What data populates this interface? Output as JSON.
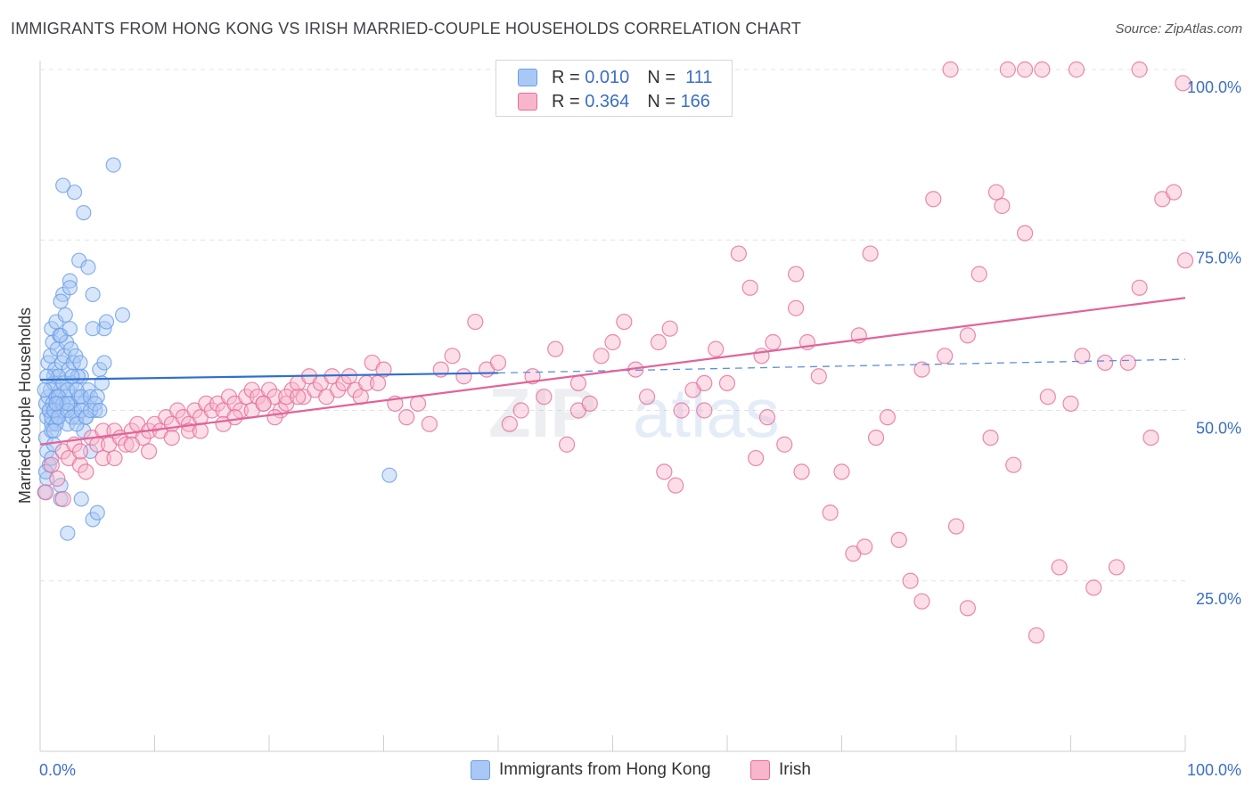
{
  "title": "IMMIGRANTS FROM HONG KONG VS IRISH MARRIED-COUPLE HOUSEHOLDS CORRELATION CHART",
  "source": "Source: ZipAtlas.com",
  "watermark": {
    "zip": "ZIP",
    "atlas": "atlas"
  },
  "legend_top": [
    {
      "r_label": "R = ",
      "r_value": "0.010",
      "n_label": "N = ",
      "n_value": "111",
      "color": "#a9c8f5"
    },
    {
      "r_label": "R = ",
      "r_value": "0.364",
      "n_label": "N = ",
      "n_value": "166",
      "color": "#f7b6cb"
    }
  ],
  "legend_bottom": [
    {
      "label": "Immigrants from Hong Kong",
      "color": "#a9c8f5"
    },
    {
      "label": "Irish",
      "color": "#f7b6cb"
    }
  ],
  "chart_data": {
    "type": "scatter",
    "title": "IMMIGRANTS FROM HONG KONG VS IRISH MARRIED-COUPLE HOUSEHOLDS CORRELATION CHART",
    "xlabel": "",
    "ylabel": "Married-couple Households",
    "xlim": [
      0,
      100
    ],
    "ylim": [
      0,
      100
    ],
    "x_tick_labels": [
      "0.0%",
      "100.0%"
    ],
    "y_tick_labels": [
      "25.0%",
      "50.0%",
      "75.0%",
      "100.0%"
    ],
    "y_ticks": [
      25,
      50,
      75,
      100
    ],
    "grid": true,
    "series": [
      {
        "name": "Immigrants from Hong Kong",
        "color": "#6a9fe6",
        "fill": "#a9c8f5",
        "r": 0.01,
        "n": 111,
        "trend": {
          "x0": 0,
          "y0": 54.5,
          "x1": 40,
          "y1": 55.5,
          "dash_x1": 100,
          "dash_y1": 57.5
        },
        "points": [
          [
            0.5,
            51
          ],
          [
            0.6,
            49
          ],
          [
            0.7,
            52
          ],
          [
            0.8,
            50
          ],
          [
            0.9,
            53
          ],
          [
            1.0,
            48
          ],
          [
            1.1,
            51
          ],
          [
            1.2,
            55
          ],
          [
            1.3,
            50
          ],
          [
            1.4,
            52
          ],
          [
            0.5,
            46
          ],
          [
            0.6,
            44
          ],
          [
            0.8,
            42
          ],
          [
            1.0,
            47
          ],
          [
            1.2,
            45
          ],
          [
            1.5,
            49
          ],
          [
            1.6,
            51
          ],
          [
            1.8,
            53
          ],
          [
            2.0,
            50
          ],
          [
            2.2,
            52
          ],
          [
            2.4,
            48
          ],
          [
            2.6,
            51
          ],
          [
            2.8,
            54
          ],
          [
            3.0,
            50
          ],
          [
            3.2,
            49
          ],
          [
            3.4,
            52
          ],
          [
            3.6,
            55
          ],
          [
            3.8,
            51
          ],
          [
            4.0,
            49
          ],
          [
            4.2,
            53
          ],
          [
            0.7,
            57
          ],
          [
            0.9,
            58
          ],
          [
            1.1,
            60
          ],
          [
            1.3,
            56
          ],
          [
            1.5,
            59
          ],
          [
            1.7,
            61
          ],
          [
            1.9,
            57
          ],
          [
            2.1,
            58
          ],
          [
            2.3,
            60
          ],
          [
            2.5,
            56
          ],
          [
            2.7,
            59
          ],
          [
            2.9,
            57
          ],
          [
            3.1,
            58
          ],
          [
            3.3,
            55
          ],
          [
            3.5,
            57
          ],
          [
            1.0,
            62
          ],
          [
            1.4,
            63
          ],
          [
            1.8,
            61
          ],
          [
            2.2,
            64
          ],
          [
            2.6,
            62
          ],
          [
            1.2,
            54
          ],
          [
            1.6,
            55
          ],
          [
            2.0,
            54
          ],
          [
            2.4,
            53
          ],
          [
            2.8,
            55
          ],
          [
            3.2,
            53
          ],
          [
            3.6,
            52
          ],
          [
            4.4,
            52
          ],
          [
            4.8,
            50
          ],
          [
            5.0,
            52
          ],
          [
            5.2,
            56
          ],
          [
            5.4,
            54
          ],
          [
            5.6,
            57
          ],
          [
            0.4,
            53
          ],
          [
            0.6,
            55
          ],
          [
            0.8,
            50
          ],
          [
            1.0,
            49
          ],
          [
            1.2,
            50
          ],
          [
            1.4,
            48
          ],
          [
            1.6,
            49
          ],
          [
            2.0,
            67
          ],
          [
            2.6,
            69
          ],
          [
            3.4,
            72
          ],
          [
            4.2,
            71
          ],
          [
            2.6,
            68
          ],
          [
            4.6,
            67
          ],
          [
            5.6,
            62
          ],
          [
            7.2,
            64
          ],
          [
            4.6,
            62
          ],
          [
            5.8,
            63
          ],
          [
            2.0,
            83
          ],
          [
            3.0,
            82
          ],
          [
            3.8,
            79
          ],
          [
            6.4,
            86
          ],
          [
            1.8,
            66
          ],
          [
            0.6,
            40
          ],
          [
            1.0,
            43
          ],
          [
            1.8,
            39
          ],
          [
            1.8,
            37
          ],
          [
            2.4,
            32
          ],
          [
            3.6,
            37
          ],
          [
            4.6,
            34
          ],
          [
            5.0,
            35
          ],
          [
            3.8,
            47
          ],
          [
            4.4,
            44
          ],
          [
            1.6,
            52
          ],
          [
            2.0,
            51
          ],
          [
            2.4,
            50
          ],
          [
            2.8,
            49
          ],
          [
            3.2,
            48
          ],
          [
            3.6,
            50
          ],
          [
            4.0,
            49
          ],
          [
            4.4,
            50
          ],
          [
            4.8,
            51
          ],
          [
            5.2,
            50
          ],
          [
            0.4,
            38
          ],
          [
            0.5,
            41
          ],
          [
            1.2,
            47
          ],
          [
            2.4,
            51
          ],
          [
            30.5,
            40.5
          ],
          [
            1.4,
            51
          ]
        ]
      },
      {
        "name": "Irish",
        "color": "#e66d98",
        "fill": "#f7b6cb",
        "r": 0.364,
        "n": 166,
        "trend": {
          "x0": 0,
          "y0": 45,
          "x1": 100,
          "y1": 66.5
        },
        "points": [
          [
            0.5,
            38
          ],
          [
            1.0,
            42
          ],
          [
            1.5,
            40
          ],
          [
            2.0,
            44
          ],
          [
            2.5,
            43
          ],
          [
            3.0,
            45
          ],
          [
            3.5,
            42
          ],
          [
            4.0,
            41
          ],
          [
            4.5,
            46
          ],
          [
            5.0,
            45
          ],
          [
            5.5,
            47
          ],
          [
            6.0,
            45
          ],
          [
            6.5,
            47
          ],
          [
            7.0,
            46
          ],
          [
            7.5,
            45
          ],
          [
            8.0,
            47
          ],
          [
            8.5,
            48
          ],
          [
            9.0,
            46
          ],
          [
            9.5,
            47
          ],
          [
            10.0,
            48
          ],
          [
            10.5,
            47
          ],
          [
            11.0,
            49
          ],
          [
            11.5,
            48
          ],
          [
            12.0,
            50
          ],
          [
            12.5,
            49
          ],
          [
            13.0,
            48
          ],
          [
            13.5,
            50
          ],
          [
            14.0,
            49
          ],
          [
            14.5,
            51
          ],
          [
            15.0,
            50
          ],
          [
            15.5,
            51
          ],
          [
            16.0,
            50
          ],
          [
            16.5,
            52
          ],
          [
            17.0,
            51
          ],
          [
            17.5,
            50
          ],
          [
            18.0,
            52
          ],
          [
            18.5,
            53
          ],
          [
            19.0,
            52
          ],
          [
            19.5,
            51
          ],
          [
            20.0,
            53
          ],
          [
            20.5,
            52
          ],
          [
            21.0,
            50
          ],
          [
            21.5,
            51
          ],
          [
            22.0,
            53
          ],
          [
            22.5,
            54
          ],
          [
            23.0,
            52
          ],
          [
            23.5,
            55
          ],
          [
            24.0,
            53
          ],
          [
            24.5,
            54
          ],
          [
            25.0,
            52
          ],
          [
            25.5,
            55
          ],
          [
            26.0,
            53
          ],
          [
            26.5,
            54
          ],
          [
            27.0,
            55
          ],
          [
            27.5,
            53
          ],
          [
            28.0,
            52
          ],
          [
            28.5,
            54
          ],
          [
            29.0,
            57
          ],
          [
            29.5,
            54
          ],
          [
            30.0,
            56
          ],
          [
            31.0,
            51
          ],
          [
            32.0,
            49
          ],
          [
            33.0,
            51
          ],
          [
            34.0,
            48
          ],
          [
            35.0,
            56
          ],
          [
            36.0,
            58
          ],
          [
            37.0,
            55
          ],
          [
            38.0,
            63
          ],
          [
            39.0,
            56
          ],
          [
            40.0,
            57
          ],
          [
            41.0,
            48
          ],
          [
            42.0,
            50
          ],
          [
            43.0,
            55
          ],
          [
            44.0,
            52
          ],
          [
            45.0,
            59
          ],
          [
            46.0,
            45
          ],
          [
            47.0,
            50
          ],
          [
            48.0,
            51
          ],
          [
            49.0,
            58
          ],
          [
            50.0,
            60
          ],
          [
            51.0,
            63
          ],
          [
            52.0,
            56
          ],
          [
            53.0,
            52
          ],
          [
            54.0,
            60
          ],
          [
            55.0,
            62
          ],
          [
            56.0,
            50
          ],
          [
            57.0,
            53
          ],
          [
            58.0,
            50
          ],
          [
            59.0,
            59
          ],
          [
            60.0,
            54
          ],
          [
            61.0,
            73
          ],
          [
            62.0,
            68
          ],
          [
            63.0,
            58
          ],
          [
            64.0,
            60
          ],
          [
            65.0,
            45
          ],
          [
            66.0,
            70
          ],
          [
            67.0,
            60
          ],
          [
            68.0,
            55
          ],
          [
            69.0,
            35
          ],
          [
            70.0,
            41
          ],
          [
            71.0,
            29
          ],
          [
            72.0,
            30
          ],
          [
            73.0,
            46
          ],
          [
            74.0,
            49
          ],
          [
            75.0,
            31
          ],
          [
            76.0,
            25
          ],
          [
            77.0,
            56
          ],
          [
            78.0,
            81
          ],
          [
            79.0,
            58
          ],
          [
            80.0,
            33
          ],
          [
            81.0,
            61
          ],
          [
            82.0,
            70
          ],
          [
            83.0,
            46
          ],
          [
            84.0,
            80
          ],
          [
            85.0,
            42
          ],
          [
            86.0,
            76
          ],
          [
            87.0,
            17
          ],
          [
            88.0,
            52
          ],
          [
            89.0,
            27
          ],
          [
            90.0,
            51
          ],
          [
            91.0,
            58
          ],
          [
            92.0,
            24
          ],
          [
            93.0,
            57
          ],
          [
            94.0,
            27
          ],
          [
            95.0,
            57
          ],
          [
            96.0,
            68
          ],
          [
            97.0,
            46
          ],
          [
            98.0,
            81
          ],
          [
            99.0,
            82
          ],
          [
            100.0,
            72
          ],
          [
            79.5,
            100
          ],
          [
            84.5,
            100
          ],
          [
            86.0,
            100
          ],
          [
            87.5,
            100
          ],
          [
            90.5,
            100
          ],
          [
            96.0,
            100
          ],
          [
            99.8,
            98
          ],
          [
            83.5,
            82
          ],
          [
            58.0,
            54
          ],
          [
            66.0,
            65
          ],
          [
            71.5,
            61
          ],
          [
            72.5,
            73
          ],
          [
            47.0,
            54
          ],
          [
            54.5,
            41
          ],
          [
            55.5,
            39
          ],
          [
            62.5,
            43
          ],
          [
            63.5,
            49
          ],
          [
            66.5,
            41
          ],
          [
            77.0,
            22
          ],
          [
            81.0,
            21
          ],
          [
            2.0,
            37
          ],
          [
            3.5,
            44
          ],
          [
            5.5,
            43
          ],
          [
            6.5,
            43
          ],
          [
            8.0,
            45
          ],
          [
            9.5,
            44
          ],
          [
            11.5,
            46
          ],
          [
            13.0,
            47
          ],
          [
            14.0,
            47
          ],
          [
            16.0,
            48
          ],
          [
            17.0,
            49
          ],
          [
            18.5,
            50
          ],
          [
            19.5,
            51
          ],
          [
            20.5,
            49
          ],
          [
            21.5,
            52
          ],
          [
            22.5,
            52
          ]
        ]
      }
    ]
  }
}
